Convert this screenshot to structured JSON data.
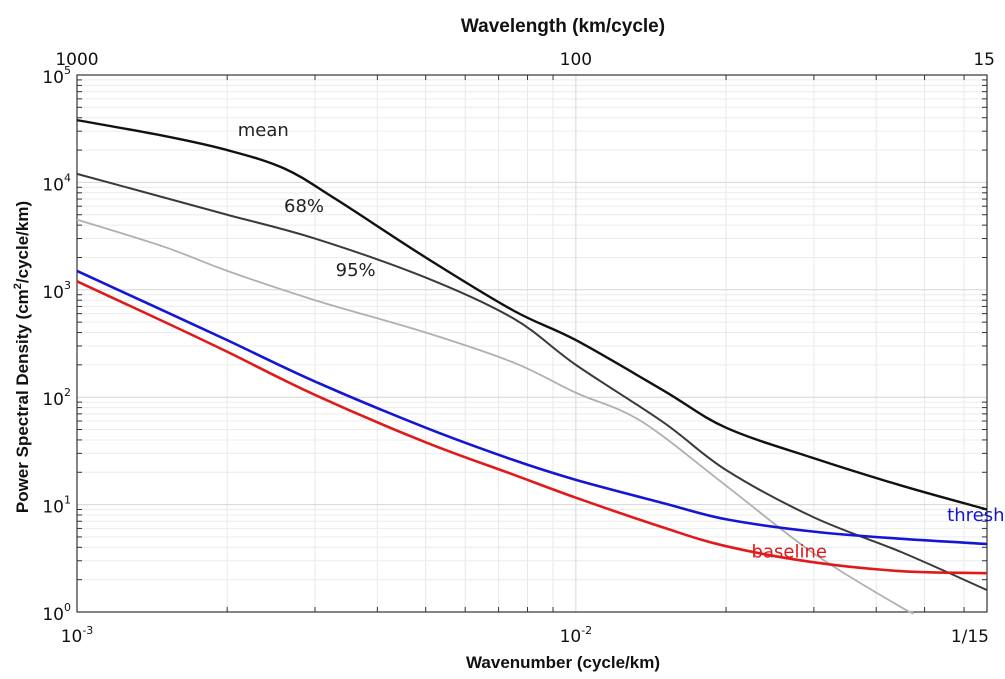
{
  "chart_data": {
    "type": "line",
    "x_scale": "log",
    "y_scale": "log",
    "xlim": [
      0.001,
      0.0667
    ],
    "ylim": [
      1,
      100000
    ],
    "grid": true,
    "title_top": "Wavelength (km/cycle)",
    "xlabel": "Wavenumber (cycle/km)",
    "ylabel_pre": "Power Spectral Density (cm",
    "ylabel_sup": "2",
    "ylabel_post": "/cycle/km)",
    "bottom_ticks": [
      {
        "x": 0.001,
        "base": "10",
        "exp": "-3"
      },
      {
        "x": 0.01,
        "base": "10",
        "exp": "-2"
      },
      {
        "x": 0.0667,
        "base": "1/15",
        "exp": ""
      }
    ],
    "top_ticks": [
      {
        "x": 0.001,
        "label": "1000"
      },
      {
        "x": 0.01,
        "label": "100"
      },
      {
        "x": 0.0667,
        "label": "15"
      }
    ],
    "y_ticks": [
      {
        "y": 1,
        "base": "10",
        "exp": "0"
      },
      {
        "y": 10,
        "base": "10",
        "exp": "1"
      },
      {
        "y": 100,
        "base": "10",
        "exp": "2"
      },
      {
        "y": 1000,
        "base": "10",
        "exp": "3"
      },
      {
        "y": 10000,
        "base": "10",
        "exp": "4"
      },
      {
        "y": 100000,
        "base": "10",
        "exp": "5"
      }
    ],
    "series": [
      {
        "name": "mean",
        "color": "#111111",
        "width": 2.4,
        "label_at": [
          0.0021,
          27000
        ],
        "points": [
          [
            0.001,
            38000
          ],
          [
            0.0015,
            27000
          ],
          [
            0.002,
            20000
          ],
          [
            0.0026,
            13500
          ],
          [
            0.0033,
            7000
          ],
          [
            0.005,
            2000
          ],
          [
            0.0075,
            640
          ],
          [
            0.01,
            340
          ],
          [
            0.015,
            115
          ],
          [
            0.02,
            52
          ],
          [
            0.03,
            27
          ],
          [
            0.045,
            15
          ],
          [
            0.0667,
            9
          ]
        ]
      },
      {
        "name": "68%",
        "color": "#3a3a3a",
        "width": 2.0,
        "label_at": [
          0.0026,
          5300
        ],
        "points": [
          [
            0.001,
            12000
          ],
          [
            0.0015,
            7200
          ],
          [
            0.002,
            5000
          ],
          [
            0.003,
            3000
          ],
          [
            0.005,
            1300
          ],
          [
            0.0075,
            540
          ],
          [
            0.01,
            200
          ],
          [
            0.015,
            58
          ],
          [
            0.02,
            21
          ],
          [
            0.03,
            7.6
          ],
          [
            0.045,
            3.6
          ],
          [
            0.0667,
            1.6
          ]
        ]
      },
      {
        "name": "95%",
        "color": "#b0b0b0",
        "width": 1.8,
        "label_at": [
          0.0033,
          1350
        ],
        "points": [
          [
            0.001,
            4500
          ],
          [
            0.0015,
            2500
          ],
          [
            0.002,
            1500
          ],
          [
            0.003,
            800
          ],
          [
            0.005,
            400
          ],
          [
            0.0075,
            210
          ],
          [
            0.01,
            110
          ],
          [
            0.0135,
            60
          ],
          [
            0.02,
            15
          ],
          [
            0.03,
            3.5
          ],
          [
            0.045,
            1.1
          ],
          [
            0.0475,
            1
          ]
        ]
      },
      {
        "name": "threshold",
        "color": "#1515d4",
        "width": 2.6,
        "label_at": [
          0.0555,
          7
        ],
        "points": [
          [
            0.001,
            1500
          ],
          [
            0.0015,
            630
          ],
          [
            0.002,
            340
          ],
          [
            0.003,
            140
          ],
          [
            0.005,
            52
          ],
          [
            0.0075,
            26
          ],
          [
            0.01,
            17
          ],
          [
            0.015,
            10.3
          ],
          [
            0.02,
            7.3
          ],
          [
            0.03,
            5.6
          ],
          [
            0.045,
            4.8
          ],
          [
            0.0667,
            4.3
          ]
        ]
      },
      {
        "name": "baseline",
        "color": "#e01a1a",
        "width": 2.6,
        "label_at": [
          0.0225,
          3.2
        ],
        "points": [
          [
            0.001,
            1200
          ],
          [
            0.0015,
            500
          ],
          [
            0.002,
            265
          ],
          [
            0.003,
            105
          ],
          [
            0.005,
            38
          ],
          [
            0.0075,
            19
          ],
          [
            0.01,
            11.6
          ],
          [
            0.015,
            6.1
          ],
          [
            0.02,
            4.1
          ],
          [
            0.03,
            2.9
          ],
          [
            0.045,
            2.4
          ],
          [
            0.0667,
            2.3
          ]
        ]
      }
    ]
  }
}
